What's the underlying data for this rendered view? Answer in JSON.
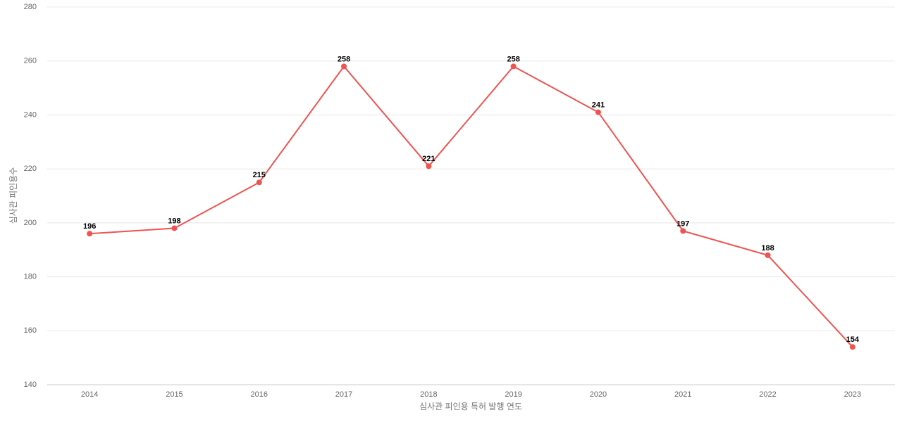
{
  "chart_data": {
    "type": "line",
    "x_label": "심사관 피인용 특허 발행 연도",
    "y_label": "심사관 피인용수",
    "categories": [
      "2014",
      "2015",
      "2016",
      "2017",
      "2018",
      "2019",
      "2020",
      "2021",
      "2022",
      "2023"
    ],
    "series": [
      {
        "color": "#ef5350",
        "values": [
          196,
          198,
          215,
          258,
          221,
          258,
          241,
          197,
          188,
          154
        ]
      }
    ],
    "ylim": [
      140,
      280
    ],
    "yticks": [
      140,
      160,
      180,
      200,
      220,
      240,
      260,
      280
    ],
    "grid": true
  }
}
